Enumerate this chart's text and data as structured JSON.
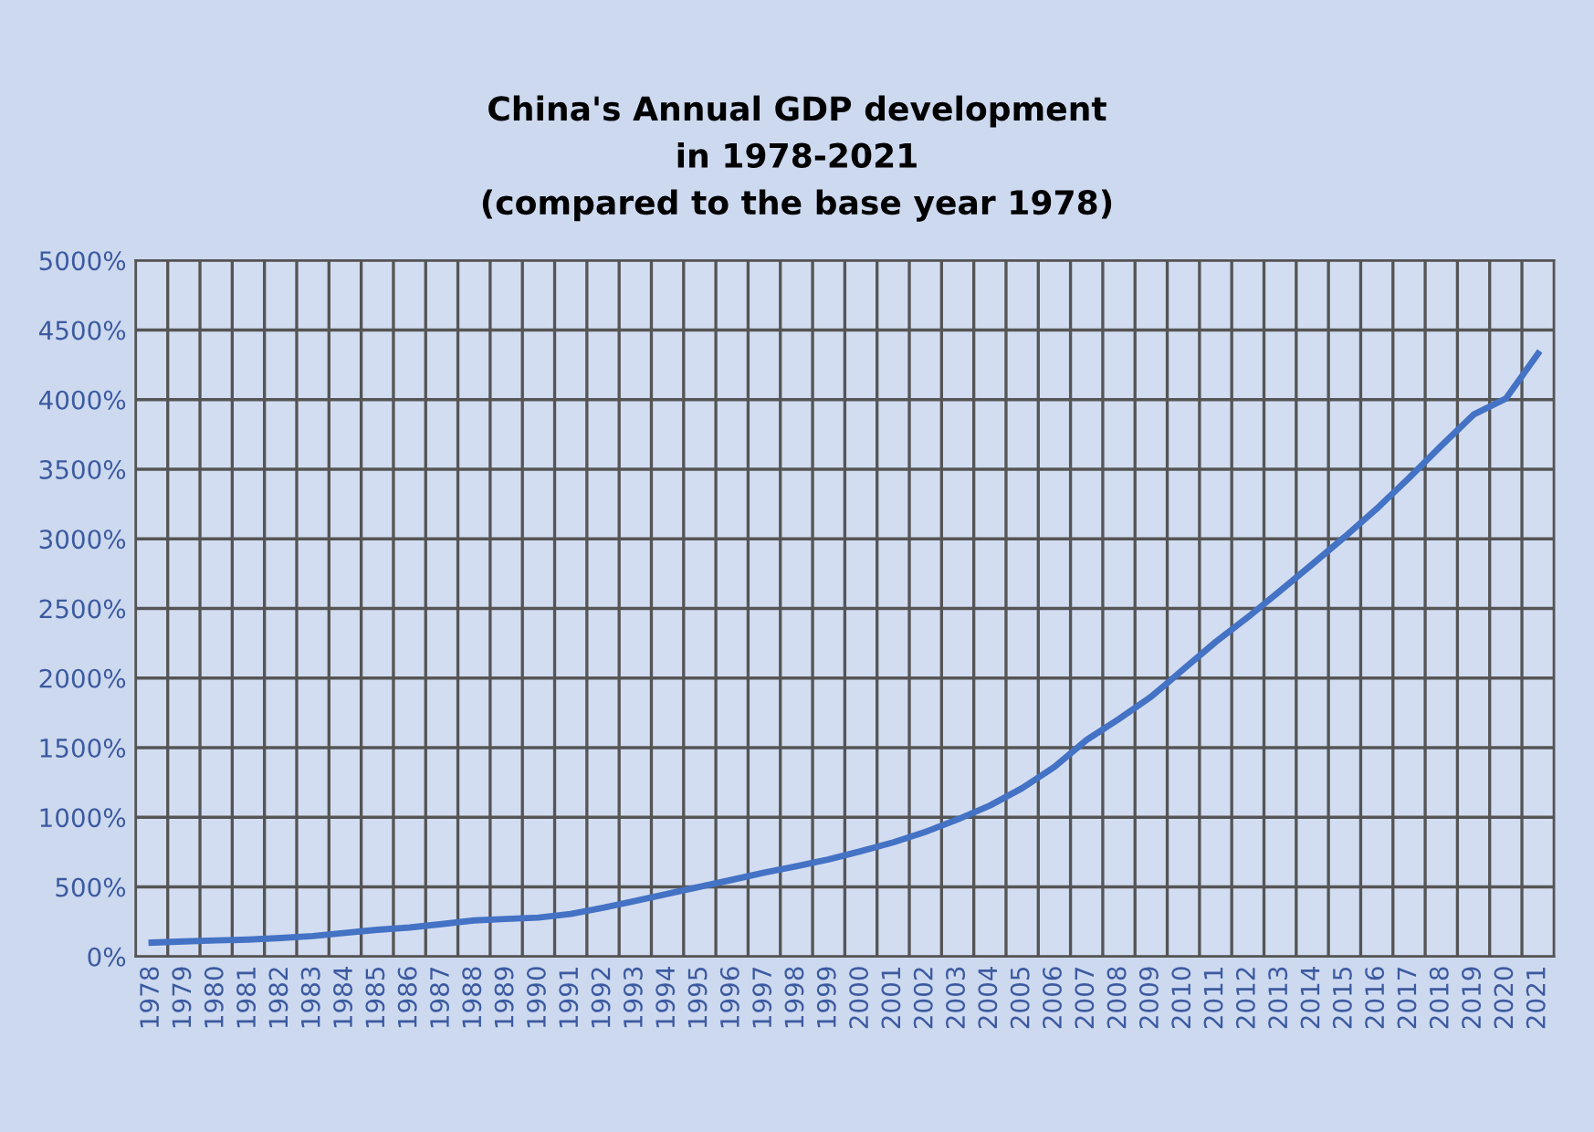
{
  "chart_data": {
    "type": "line",
    "title": "China's Annual GDP development\nin 1978-2021\n(compared to the base year 1978)",
    "categories": [
      "1978",
      "1979",
      "1980",
      "1981",
      "1982",
      "1983",
      "1984",
      "1985",
      "1986",
      "1987",
      "1988",
      "1989",
      "1990",
      "1991",
      "1992",
      "1993",
      "1994",
      "1995",
      "1996",
      "1997",
      "1998",
      "1999",
      "2000",
      "2001",
      "2002",
      "2003",
      "2004",
      "2005",
      "2006",
      "2007",
      "2008",
      "2009",
      "2010",
      "2011",
      "2012",
      "2013",
      "2014",
      "2015",
      "2016",
      "2017",
      "2018",
      "2019",
      "2020",
      "2021"
    ],
    "series": [
      {
        "color": "#4472c4",
        "values": [
          100,
          108,
          116,
          122,
          133,
          147,
          170,
          192,
          209,
          233,
          259,
          270,
          280,
          306,
          350,
          399,
          451,
          501,
          551,
          602,
          649,
          698,
          757,
          820,
          895,
          985,
          1085,
          1209,
          1362,
          1556,
          1706,
          1866,
          2063,
          2259,
          2437,
          2626,
          2818,
          3013,
          3217,
          3438,
          3669,
          3892,
          4007,
          4331
        ]
      }
    ],
    "ylim": [
      0,
      5000
    ],
    "yticks": [
      {
        "value": 0,
        "label": "0%"
      },
      {
        "value": 500,
        "label": "500%"
      },
      {
        "value": 1000,
        "label": "1000%"
      },
      {
        "value": 1500,
        "label": "1500%"
      },
      {
        "value": 2000,
        "label": "2000%"
      },
      {
        "value": 2500,
        "label": "2500%"
      },
      {
        "value": 3000,
        "label": "3000%"
      },
      {
        "value": 3500,
        "label": "3500%"
      },
      {
        "value": 4000,
        "label": "4000%"
      },
      {
        "value": 4500,
        "label": "4500%"
      },
      {
        "value": 5000,
        "label": "5000%"
      }
    ],
    "grid": true,
    "marker": "none",
    "line_style": "solid"
  }
}
